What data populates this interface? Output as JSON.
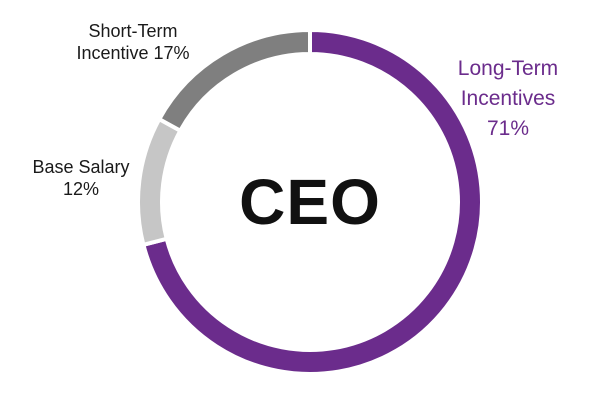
{
  "chart_data": {
    "type": "pie",
    "center_label": "CEO",
    "slices": [
      {
        "name": "Long-Term Incentives",
        "value": 71,
        "label_lines": [
          "Long-Term",
          "Incentives",
          "71%"
        ],
        "color": "#6b2c8c",
        "label_color": "#6b2c8c"
      },
      {
        "name": "Base Salary",
        "value": 12,
        "label_lines": [
          "Base Salary",
          "12%"
        ],
        "color": "#c6c6c6",
        "label_color": "#1a1a1a"
      },
      {
        "name": "Short-Term Incentive",
        "value": 17,
        "label_lines": [
          "Short-Term",
          "Incentive 17%"
        ],
        "color": "#7f7f7f",
        "label_color": "#1a1a1a"
      }
    ]
  }
}
